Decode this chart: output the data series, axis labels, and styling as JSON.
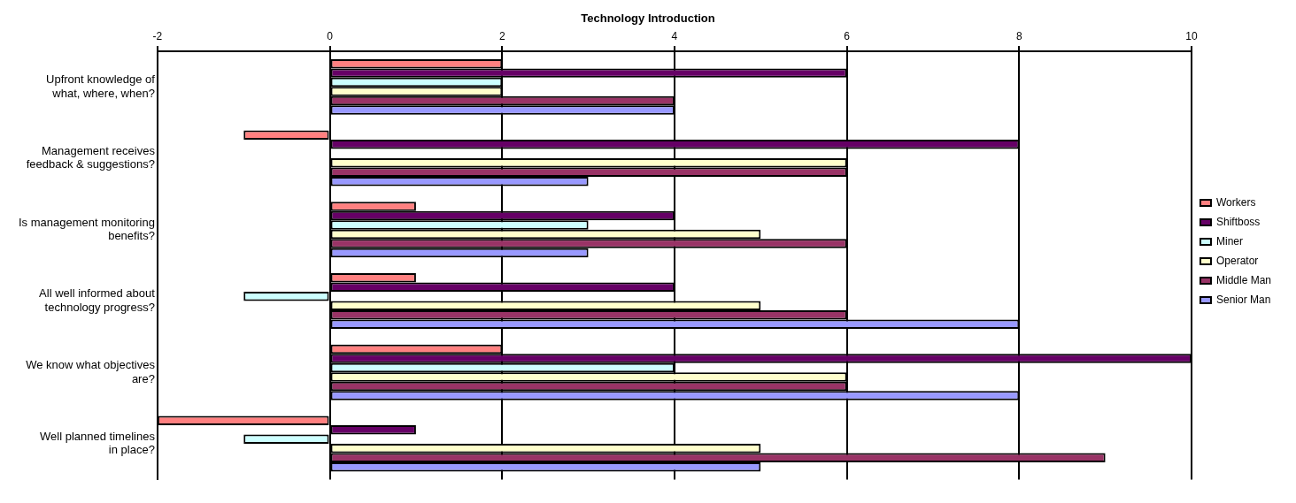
{
  "chart_data": {
    "type": "bar",
    "orientation": "horizontal",
    "title": "Technology Introduction",
    "categories": [
      "Upfront knowledge of what, where, when?",
      "Management receives feedback & suggestions?",
      "Is management monitoring benefits?",
      "All well informed about technology progress?",
      "We know what objectives are?",
      "Well planned timelines in place?"
    ],
    "series": [
      {
        "name": "Workers",
        "color": "#ff8080",
        "values": [
          2,
          -1,
          1,
          1,
          2,
          -2
        ]
      },
      {
        "name": "Shiftboss",
        "color": "#660066",
        "values": [
          6,
          8,
          4,
          4,
          10,
          1
        ]
      },
      {
        "name": "Miner",
        "color": "#ccffff",
        "values": [
          2,
          0,
          3,
          -1,
          4,
          -1
        ]
      },
      {
        "name": "Operator",
        "color": "#ffffcc",
        "values": [
          2,
          6,
          5,
          5,
          6,
          5
        ]
      },
      {
        "name": "Middle Man",
        "color": "#993366",
        "values": [
          4,
          6,
          6,
          6,
          6,
          9
        ]
      },
      {
        "name": "Senior Man",
        "color": "#9999ff",
        "values": [
          4,
          3,
          3,
          8,
          8,
          5
        ]
      }
    ],
    "xlim": [
      -2,
      10
    ],
    "xticks": [
      -2,
      0,
      2,
      4,
      6,
      8,
      10
    ],
    "grid": "x",
    "legend": "right"
  }
}
